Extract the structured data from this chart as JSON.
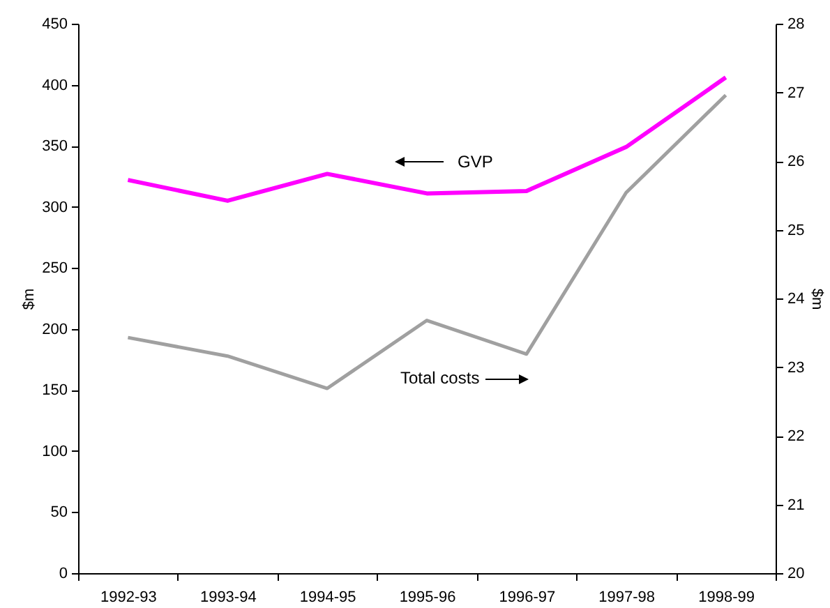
{
  "chart_data": {
    "type": "line",
    "categories": [
      "1992-93",
      "1993-94",
      "1994-95",
      "1995-96",
      "1996-97",
      "1997-98",
      "1998-99"
    ],
    "series": [
      {
        "color": "#ff00ff",
        "values": [
          322,
          305,
          327,
          311,
          313,
          349,
          406
        ]
      },
      {
        "color": "#a0a0a0",
        "axis": "y2",
        "values": [
          23.43,
          23.16,
          22.69,
          23.68,
          23.19,
          25.54,
          26.96
        ]
      }
    ],
    "ylabel": "$m",
    "y2label": "$m",
    "ylim": [
      0,
      450
    ],
    "yticks": [
      0,
      50,
      100,
      150,
      200,
      250,
      300,
      350,
      400,
      450
    ],
    "y2lim": [
      20,
      28
    ],
    "y2ticks": [
      20,
      21,
      22,
      23,
      24,
      25,
      26,
      27,
      28
    ],
    "grid": false,
    "annotations": [
      "GVP",
      "Total costs"
    ]
  }
}
